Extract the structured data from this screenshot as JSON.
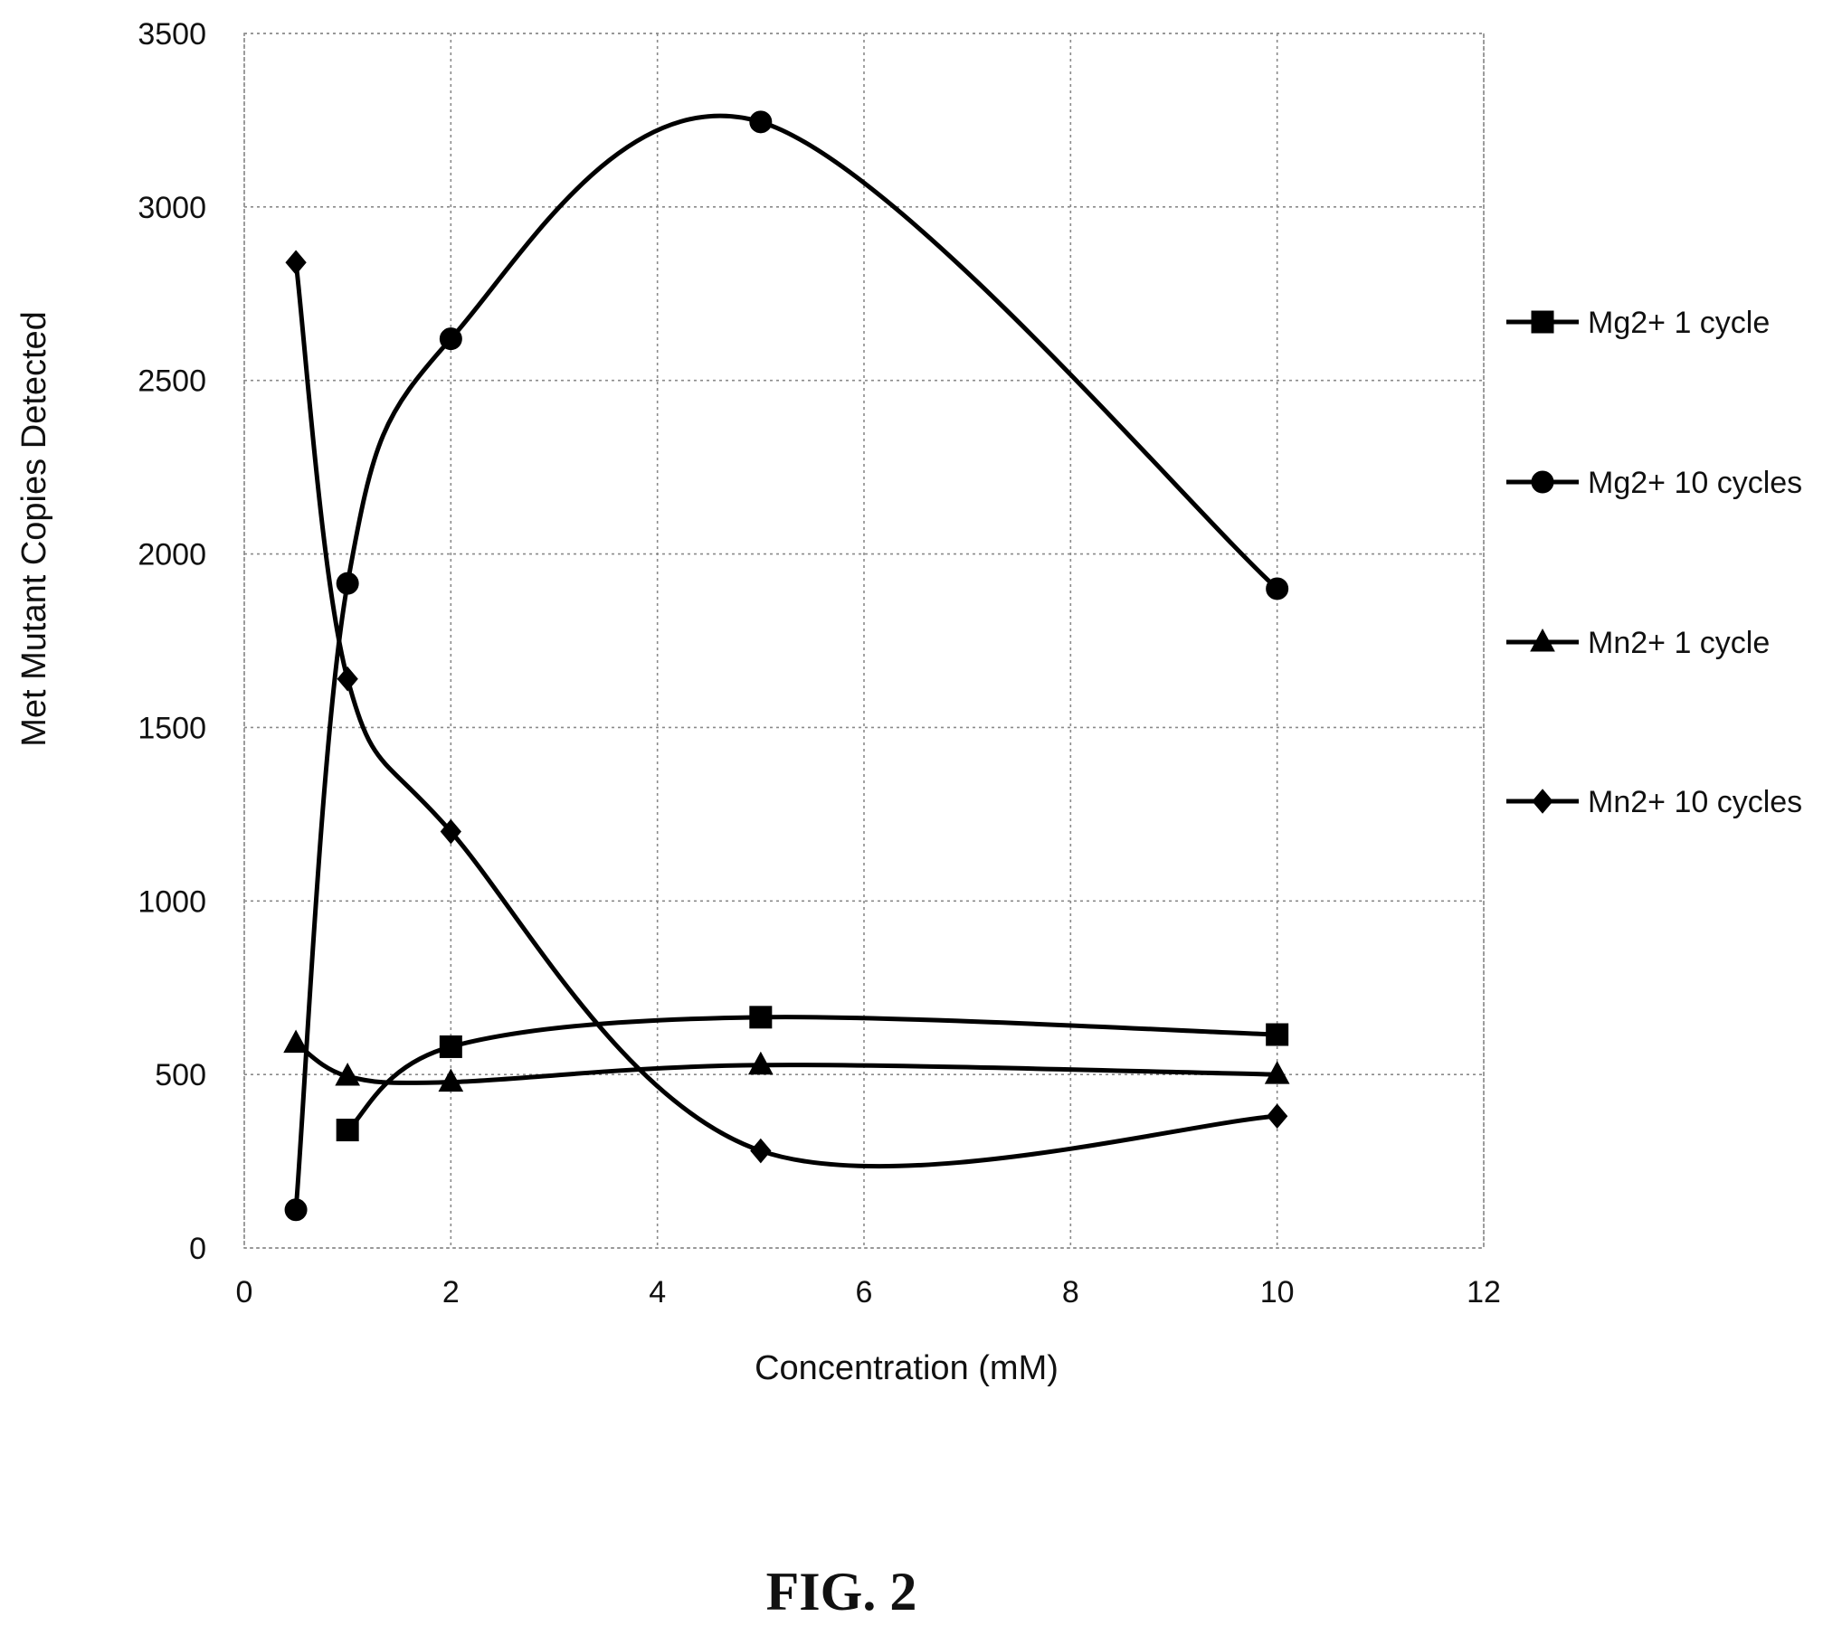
{
  "chart_data": {
    "type": "line",
    "title": "",
    "xlabel": "Concentration (mM)",
    "ylabel": "Met Mutant Copies Detected",
    "xlim": [
      0,
      12
    ],
    "ylim": [
      0,
      3500
    ],
    "x_ticks": [
      0,
      2,
      4,
      6,
      8,
      10,
      12
    ],
    "y_ticks": [
      0,
      500,
      1000,
      1500,
      2000,
      2500,
      3000,
      3500
    ],
    "x_tick_labels": [
      "0",
      "2",
      "4",
      "6",
      "8",
      "10",
      "12"
    ],
    "y_tick_labels": [
      "0",
      "500",
      "1000",
      "1500",
      "2000",
      "2500",
      "3000",
      "3500"
    ],
    "grid": true,
    "smooth": true,
    "legend_position": "right",
    "series": [
      {
        "name": "Mg2+ 1 cycle",
        "marker": "square",
        "x": [
          1,
          2,
          5,
          10
        ],
        "values": [
          340,
          580,
          665,
          615
        ]
      },
      {
        "name": "Mg2+ 10 cycles",
        "marker": "circle",
        "x": [
          0.5,
          1,
          2,
          5,
          10
        ],
        "values": [
          110,
          1915,
          2620,
          3245,
          1900
        ]
      },
      {
        "name": "Mn2+ 1 cycle",
        "marker": "triangle",
        "x": [
          0.5,
          1,
          2,
          5,
          10
        ],
        "values": [
          590,
          495,
          478,
          527,
          500
        ]
      },
      {
        "name": "Mn2+ 10 cycles",
        "marker": "diamond",
        "x": [
          0.5,
          1,
          2,
          5,
          10
        ],
        "values": [
          2840,
          1640,
          1200,
          280,
          380
        ]
      }
    ]
  },
  "caption": "FIG. 2"
}
